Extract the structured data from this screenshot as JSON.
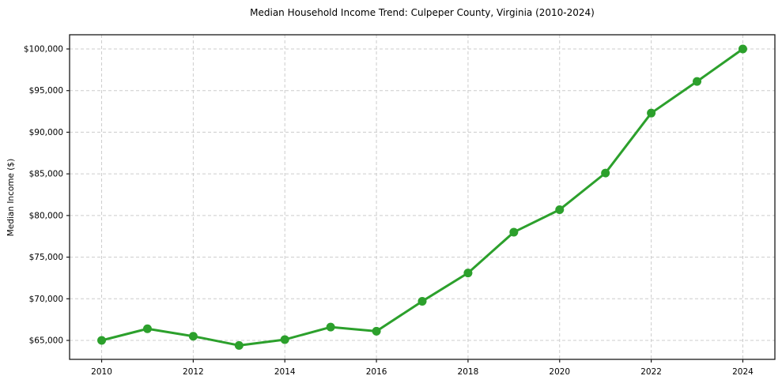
{
  "chart_data": {
    "type": "line",
    "title": "Median Household Income Trend: Culpeper County, Virginia (2010-2024)",
    "xlabel": "",
    "ylabel": "Median Income ($)",
    "x": [
      2010,
      2011,
      2012,
      2013,
      2014,
      2015,
      2016,
      2017,
      2018,
      2019,
      2020,
      2021,
      2022,
      2023,
      2024
    ],
    "values": [
      65000,
      66400,
      65500,
      64400,
      65100,
      66600,
      66100,
      69700,
      73100,
      78000,
      80700,
      85100,
      92300,
      96100,
      100000
    ],
    "x_ticks": {
      "values": [
        2010,
        2012,
        2014,
        2016,
        2018,
        2020,
        2022,
        2024
      ],
      "labels": [
        "2010",
        "2012",
        "2014",
        "2016",
        "2018",
        "2020",
        "2022",
        "2024"
      ]
    },
    "y_ticks": {
      "values": [
        65000,
        70000,
        75000,
        80000,
        85000,
        90000,
        95000,
        100000
      ],
      "labels": [
        "$65,000",
        "$70,000",
        "$75,000",
        "$80,000",
        "$85,000",
        "$90,000",
        "$95,000",
        "$100,000"
      ]
    },
    "xlim": [
      2009.3,
      2024.7
    ],
    "ylim": [
      62724,
      101707
    ],
    "grid": true,
    "grid_style": "dashed",
    "marker": "circle",
    "legend": false,
    "colors": {
      "line": "#2ca02c",
      "grid": "#cccccc",
      "spine": "#1a1a1a",
      "tick_text": "#000000",
      "background": "#ffffff"
    }
  }
}
